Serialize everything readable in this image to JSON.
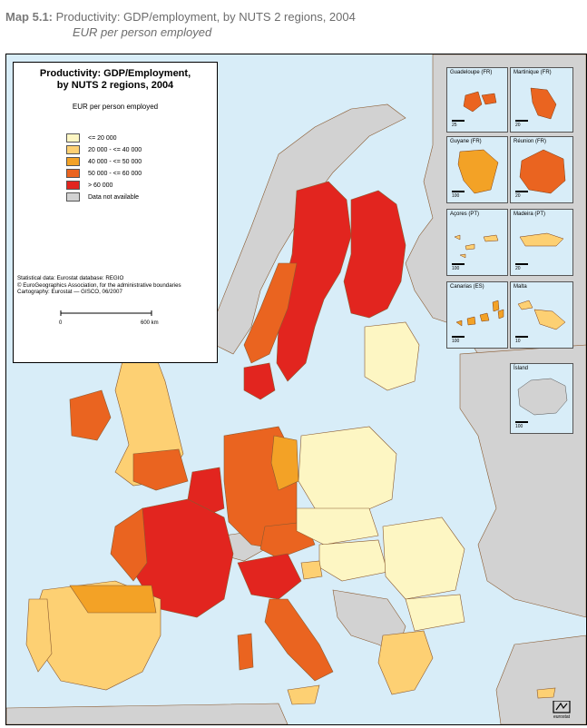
{
  "caption": {
    "label": "Map 5.1:",
    "title": "Productivity: GDP/employment, by NUTS 2 regions, 2004",
    "subtitle": "EUR per person employed"
  },
  "legend": {
    "title_line1": "Productivity: GDP/Employment,",
    "title_line2": "by NUTS 2 regions, 2004",
    "unit": "EUR per person employed",
    "classes": [
      {
        "label": "<= 20 000",
        "color": "#fdf6c3"
      },
      {
        "label": "20 000 - <= 40 000",
        "color": "#fdd073"
      },
      {
        "label": "40 000 - <= 50 000",
        "color": "#f3a226"
      },
      {
        "label": "50 000 - <= 60 000",
        "color": "#ea6420"
      },
      {
        "label": "> 60 000",
        "color": "#e2251f"
      },
      {
        "label": "Data not available",
        "color": "#d2d2d2"
      }
    ]
  },
  "source": {
    "line1": "Statistical data: Eurostat database: REGIO",
    "line2": "© EuroGeographics Association, for the administrative boundaries",
    "line3": "Cartography: Eurostat — GISCO, 06/2007"
  },
  "scale": {
    "start": "0",
    "end": "600 km"
  },
  "insets": [
    {
      "name": "Guadeloupe (FR)",
      "scale": "25"
    },
    {
      "name": "Martinique (FR)",
      "scale": "20"
    },
    {
      "name": "Guyane (FR)",
      "scale": "100"
    },
    {
      "name": "Réunion (FR)",
      "scale": "20"
    },
    {
      "name": "Açores (PT)",
      "scale": "100"
    },
    {
      "name": "Madeira (PT)",
      "scale": "20"
    },
    {
      "name": "Canarias (ES)",
      "scale": "100"
    },
    {
      "name": "Malta",
      "scale": "10"
    },
    {
      "name": "Ísland",
      "scale": "100"
    }
  ],
  "logo_text": "eurostat",
  "colors": {
    "sea": "#d8edf8",
    "nodata": "#d2d2d2",
    "border": "#7a3a10"
  }
}
